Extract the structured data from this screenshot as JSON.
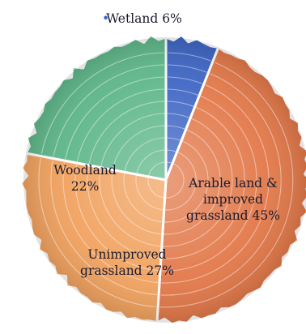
{
  "chart_data": {
    "type": "pie",
    "slices": [
      {
        "label": "Wetland",
        "value": 6,
        "color": "#3f66c4",
        "label_lines": [
          "Wetland 6%"
        ],
        "outside": true,
        "bullet": "•"
      },
      {
        "label": "Arable land & improved grassland",
        "value": 45,
        "color": "#e27849",
        "label_lines": [
          "Arable land &",
          "improved",
          "grassland 45%"
        ]
      },
      {
        "label": "Unimproved grassland",
        "value": 27,
        "color": "#f1a25f",
        "label_lines": [
          "Unimproved",
          "grassland 27%"
        ]
      },
      {
        "label": "Woodland",
        "value": 22,
        "color": "#5fb78a",
        "label_lines": [
          "Woodland",
          "22%"
        ]
      }
    ],
    "start_angle_deg": 0,
    "direction": "clockwise",
    "legend": "none"
  }
}
